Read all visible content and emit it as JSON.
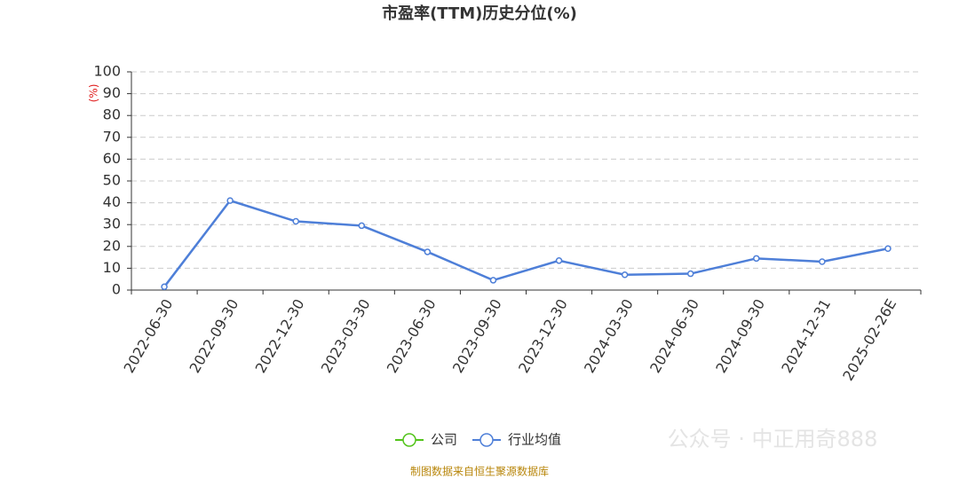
{
  "chart_data": {
    "type": "line",
    "title": "市盈率(TTM)历史分位(%)",
    "y_label": "(%)",
    "categories": [
      "2022-06-30",
      "2022-09-30",
      "2022-12-30",
      "2023-03-30",
      "2023-06-30",
      "2023-09-30",
      "2023-12-30",
      "2024-03-30",
      "2024-06-30",
      "2024-09-30",
      "2024-12-31",
      "2025-02-26E"
    ],
    "series": [
      {
        "name": "公司",
        "color": "#52c41a",
        "values": [
          null,
          null,
          null,
          null,
          null,
          null,
          null,
          null,
          null,
          null,
          null,
          null
        ]
      },
      {
        "name": "行业均值",
        "color": "#4e7fd8",
        "values": [
          1.5,
          41,
          31.5,
          29.5,
          17.5,
          4.5,
          13.5,
          7,
          7.5,
          14.5,
          13,
          19
        ]
      }
    ],
    "ylim": [
      0,
      100
    ],
    "yticks": [
      0,
      10,
      20,
      30,
      40,
      50,
      60,
      70,
      80,
      90,
      100
    ],
    "grid": true,
    "source": "制图数据来自恒生聚源数据库",
    "watermark": "公众号 · 中正用奇888"
  }
}
